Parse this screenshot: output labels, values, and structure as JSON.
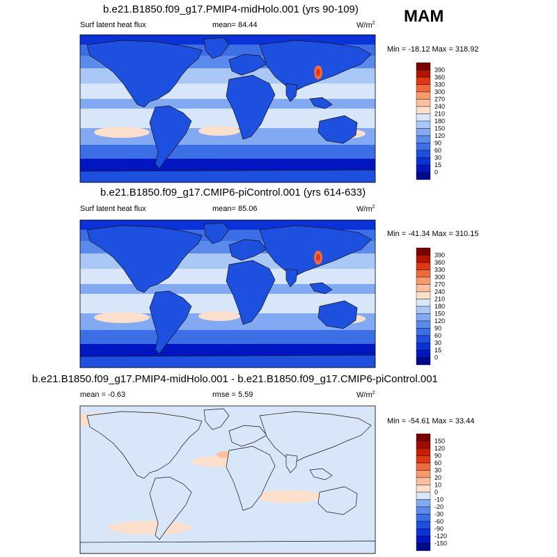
{
  "season": "MAM",
  "chart_data": [
    {
      "type": "heatmap",
      "title": "b.e21.B1850.f09_g17.PMIP4-midHolo.001 (yrs 90-109)",
      "variable": "Surf latent heat flux",
      "mean_label": "mean=  84.44",
      "units": "W/m",
      "units_sup": "2",
      "minmax": "Min = -18.12 Max = 318.92",
      "levels": [
        "0",
        "15",
        "30",
        "60",
        "90",
        "120",
        "150",
        "180",
        "210",
        "240",
        "270",
        "300",
        "330",
        "360",
        "390"
      ],
      "colors": [
        "#000a8c",
        "#0016c0",
        "#0a32d8",
        "#1e50e0",
        "#3c6ee6",
        "#5a8aec",
        "#82aaf2",
        "#aac8f6",
        "#d8e6fa",
        "#fde0cc",
        "#fcc0a0",
        "#f89a70",
        "#f06a40",
        "#e03814",
        "#b41400",
        "#7a0000"
      ],
      "ocean_mid_color": "#d8e6fa",
      "ocean_hi_color": "#fde0cc"
    },
    {
      "type": "heatmap",
      "title": "b.e21.B1850.f09_g17.CMIP6-piControl.001 (yrs 614-633)",
      "variable": "Surf latent heat flux",
      "mean_label": "mean=  85.06",
      "units": "W/m",
      "units_sup": "2",
      "minmax": "Min = -41.34 Max = 310.15",
      "levels": [
        "0",
        "15",
        "30",
        "60",
        "90",
        "120",
        "150",
        "180",
        "210",
        "240",
        "270",
        "300",
        "330",
        "360",
        "390"
      ],
      "colors": [
        "#000a8c",
        "#0016c0",
        "#0a32d8",
        "#1e50e0",
        "#3c6ee6",
        "#5a8aec",
        "#82aaf2",
        "#aac8f6",
        "#d8e6fa",
        "#fde0cc",
        "#fcc0a0",
        "#f89a70",
        "#f06a40",
        "#e03814",
        "#b41400",
        "#7a0000"
      ],
      "ocean_mid_color": "#d8e6fa",
      "ocean_hi_color": "#fde0cc"
    },
    {
      "type": "heatmap",
      "title": "b.e21.B1850.f09_g17.PMIP4-midHolo.001 - b.e21.B1850.f09_g17.CMIP6-piControl.001",
      "mean_label": "mean =  -0.63",
      "rmse_label": "rmse =   5.59",
      "units": "W/m",
      "units_sup": "2",
      "minmax": "Min = -54.61 Max =  33.44",
      "levels": [
        "-150",
        "-120",
        "-90",
        "-60",
        "-30",
        "-20",
        "-10",
        "0",
        "10",
        "20",
        "30",
        "60",
        "90",
        "120",
        "150"
      ],
      "colors": [
        "#000a8c",
        "#0016c0",
        "#0a32d8",
        "#1e50e0",
        "#3c6ee6",
        "#5a8aec",
        "#82aaf2",
        "#d8e6fa",
        "#fde0cc",
        "#fcc0a0",
        "#f89a70",
        "#f06a40",
        "#e03814",
        "#c81e00",
        "#a00a00",
        "#7a0000"
      ],
      "ocean_mid_color": "#d8e6fa",
      "ocean_hi_color": "#fde0cc"
    }
  ]
}
